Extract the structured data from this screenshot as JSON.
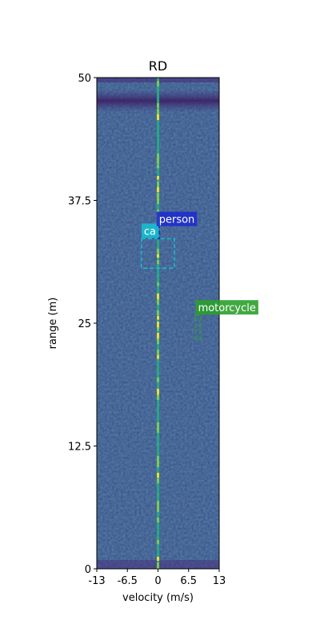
{
  "chart_data": {
    "type": "heatmap",
    "title": "RD",
    "xlabel": "velocity (m/s)",
    "ylabel": "range (m)",
    "xlim": [
      -13,
      13
    ],
    "ylim": [
      0,
      50
    ],
    "x_ticks": [
      {
        "value": -13,
        "label": "-13"
      },
      {
        "value": -6.5,
        "label": "-6.5"
      },
      {
        "value": 0,
        "label": "0"
      },
      {
        "value": 6.5,
        "label": "6.5"
      },
      {
        "value": 13,
        "label": "13"
      }
    ],
    "y_ticks": [
      {
        "value": 0,
        "label": "0"
      },
      {
        "value": 12.5,
        "label": "12.5"
      },
      {
        "value": 25,
        "label": "25"
      },
      {
        "value": 37.5,
        "label": "37.5"
      },
      {
        "value": 50,
        "label": "50"
      }
    ],
    "colormap": "viridis",
    "background_color": "#3b528b",
    "zero_velocity_line_color": "#2fb47c",
    "detections": [
      {
        "label": "car",
        "label_shown": "ca",
        "color": "#17becf",
        "box_velocity": [
          -3.5,
          3.5
        ],
        "box_range": [
          30.6,
          33.6
        ]
      },
      {
        "label": "person",
        "label_shown": "person",
        "color": "#1f2dcc",
        "box_velocity": [
          -0.3,
          0.3
        ],
        "box_range": [
          33.6,
          34.8
        ]
      },
      {
        "label": "motorcycle",
        "label_shown": "motorcycle",
        "color": "#2ca02c",
        "box_velocity": [
          8.0,
          9.0
        ],
        "box_range": [
          23.4,
          25.8
        ]
      }
    ]
  }
}
